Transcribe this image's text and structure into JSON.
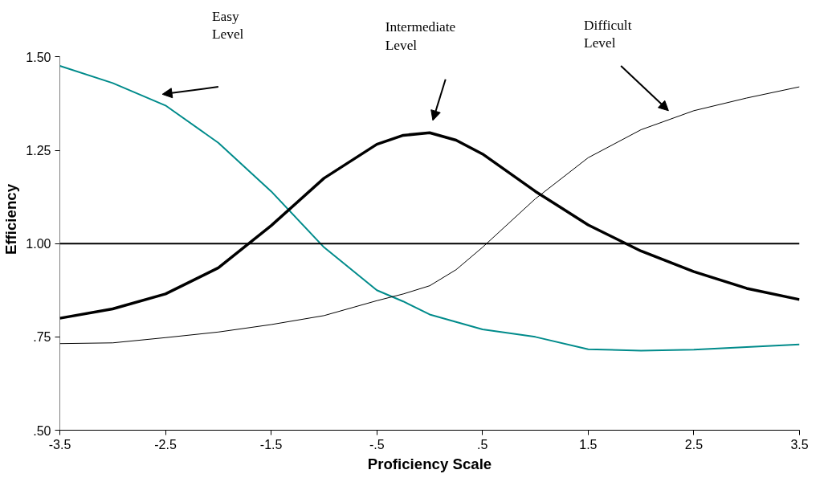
{
  "chart_data": {
    "type": "line",
    "xlabel": "Proficiency Scale",
    "ylabel": "Efficiency",
    "x": [
      -3.5,
      -3.0,
      -2.5,
      -2.0,
      -1.5,
      -1.0,
      -0.5,
      -0.25,
      0,
      0.25,
      0.5,
      1.0,
      1.5,
      2.0,
      2.5,
      3.0,
      3.5
    ],
    "series": [
      {
        "color": "#008b8b",
        "values": [
          1.476,
          1.43,
          1.37,
          1.27,
          1.14,
          0.99,
          0.875,
          0.845,
          0.81,
          0.79,
          0.77,
          0.75,
          0.717,
          0.713,
          0.716,
          0.723,
          0.73
        ]
      },
      {
        "color": "#000000",
        "values": [
          0.8,
          0.825,
          0.865,
          0.935,
          1.048,
          1.175,
          1.266,
          1.29,
          1.297,
          1.277,
          1.24,
          1.14,
          1.05,
          0.98,
          0.925,
          0.88,
          0.85
        ]
      },
      {
        "color": "#000000",
        "values": [
          0.732,
          0.734,
          0.748,
          0.763,
          0.783,
          0.807,
          0.847,
          0.865,
          0.887,
          0.93,
          0.99,
          1.12,
          1.23,
          1.305,
          1.356,
          1.39,
          1.42
        ]
      }
    ],
    "xlim": [
      -3.5,
      3.5
    ],
    "ylim": [
      0.5,
      1.5
    ],
    "xticks": [
      {
        "value": -3.5,
        "label": "-3.5"
      },
      {
        "value": -2.5,
        "label": "-2.5"
      },
      {
        "value": -1.5,
        "label": "-1.5"
      },
      {
        "value": -0.5,
        "label": "-.5"
      },
      {
        "value": 0.5,
        "label": ".5"
      },
      {
        "value": 1.5,
        "label": "1.5"
      },
      {
        "value": 2.5,
        "label": "2.5"
      },
      {
        "value": 3.5,
        "label": "3.5"
      }
    ],
    "yticks": [
      {
        "value": 0.5,
        "label": ".50"
      },
      {
        "value": 0.75,
        "label": ".75"
      },
      {
        "value": 1.0,
        "label": "1.00"
      },
      {
        "value": 1.25,
        "label": "1.25"
      },
      {
        "value": 1.5,
        "label": "1.50"
      }
    ],
    "ref_lines": [
      {
        "axis": "y",
        "value": 1.0,
        "color": "#000000"
      }
    ],
    "annotations": [
      "Easy\nLevel",
      "Intermediate\nLevel",
      "Difficult\nLevel"
    ],
    "grid": false,
    "marker": "none",
    "line_style": "solid"
  }
}
